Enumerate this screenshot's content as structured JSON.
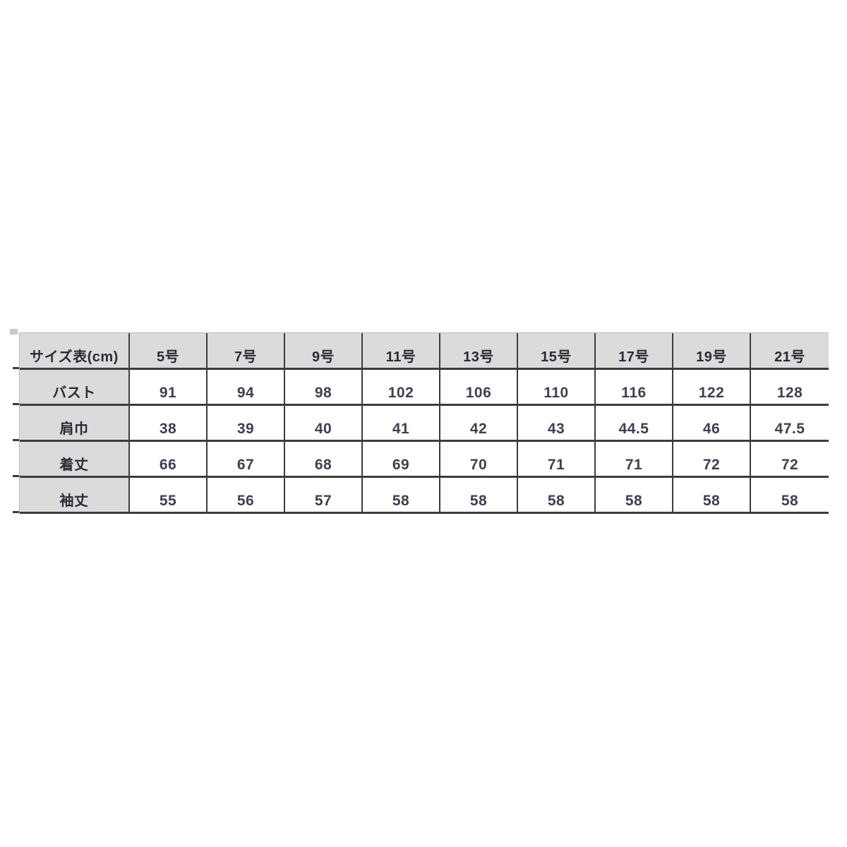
{
  "chart_data": {
    "type": "table",
    "title": "サイズ表(cm)",
    "unit": "cm",
    "header": [
      "サイズ表(cm)",
      "5号",
      "7号",
      "9号",
      "11号",
      "13号",
      "15号",
      "17号",
      "19号",
      "21号"
    ],
    "rows": [
      {
        "label": "バスト",
        "values": [
          "91",
          "94",
          "98",
          "102",
          "106",
          "110",
          "116",
          "122",
          "128"
        ]
      },
      {
        "label": "肩巾",
        "values": [
          "38",
          "39",
          "40",
          "41",
          "42",
          "43",
          "44.5",
          "46",
          "47.5"
        ]
      },
      {
        "label": "着丈",
        "values": [
          "66",
          "67",
          "68",
          "69",
          "70",
          "71",
          "71",
          "72",
          "72"
        ]
      },
      {
        "label": "袖丈",
        "values": [
          "55",
          "56",
          "57",
          "58",
          "58",
          "58",
          "58",
          "58",
          "58"
        ]
      }
    ],
    "layout": {
      "grid": "on",
      "header_row_shaded": true,
      "label_column_shaded": true
    }
  },
  "colors": {
    "header_bg": "#dbdbdb",
    "border_dark": "#3c3c3c",
    "border_light": "#b8b8b8",
    "label_text": "#2b2b33",
    "value_text": "#3f3f52",
    "page_bg": "#ffffff"
  }
}
